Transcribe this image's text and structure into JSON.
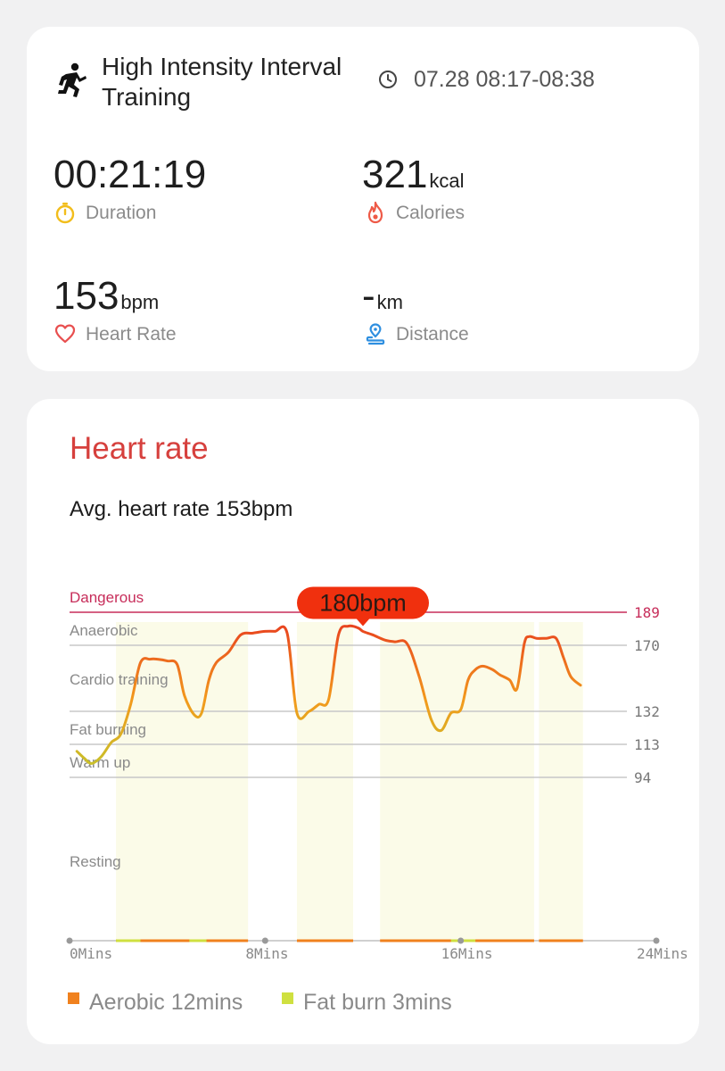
{
  "workout": {
    "title": "High Intensity Interval Training",
    "time_range": "07.28 08:17-08:38"
  },
  "metrics": {
    "duration": {
      "value": "00:21:19",
      "label": "Duration",
      "icon": "stopwatch-icon",
      "color": "#f2bd1b"
    },
    "calories": {
      "value": "321",
      "unit": "kcal",
      "label": "Calories",
      "icon": "flame-icon",
      "color": "#ee5a47"
    },
    "heart_rate": {
      "value": "153",
      "unit": "bpm",
      "label": "Heart Rate",
      "icon": "heart-icon",
      "color": "#e84f4f"
    },
    "distance": {
      "value": "-",
      "unit": "km",
      "label": "Distance",
      "icon": "route-pin-icon",
      "color": "#2f8fe0"
    }
  },
  "heart_rate_card": {
    "title": "Heart rate",
    "avg_text": "Avg. heart rate 153bpm",
    "peak_label": "180bpm"
  },
  "chart_data": {
    "type": "line",
    "xlabel": "",
    "ylabel": "",
    "x_ticks": [
      "0Mins",
      "8Mins",
      "16Mins",
      "24Mins"
    ],
    "xlim": [
      0,
      24
    ],
    "zones": [
      {
        "name": "Dangerous",
        "threshold": 189,
        "color": "#c72d5a"
      },
      {
        "name": "Anaerobic",
        "threshold": 170,
        "color": "#c8c8c8"
      },
      {
        "name": "Cardio training",
        "threshold": 132,
        "color": "#c8c8c8"
      },
      {
        "name": "Fat burning",
        "threshold": 113,
        "color": "#c8c8c8"
      },
      {
        "name": "Warm up",
        "threshold": 94,
        "color": "#c8c8c8"
      },
      {
        "name": "Resting",
        "threshold": null,
        "color": "#c8c8c8"
      }
    ],
    "peak": {
      "x": 12.0,
      "y": 180
    },
    "series": [
      {
        "x": [
          0.3,
          0.6,
          0.9,
          1.3,
          1.7,
          2.1,
          2.5,
          2.9,
          3.3,
          3.6,
          4.0,
          4.4,
          4.7,
          5.1,
          5.4,
          5.7,
          6.0,
          6.5,
          7.0,
          7.5,
          8.0,
          8.4,
          8.9,
          9.3,
          9.8,
          10.2,
          10.6,
          11.0,
          11.4,
          11.8,
          12.0,
          12.4,
          12.9,
          13.3,
          13.8,
          14.3,
          14.8,
          15.2,
          15.6,
          16.0,
          16.3,
          16.6,
          16.9,
          17.3,
          17.6,
          18.0,
          18.3,
          18.6,
          18.8,
          19.1,
          19.5,
          19.9,
          20.2,
          20.5,
          20.9
        ],
        "y": [
          109,
          105,
          102,
          106,
          114,
          119,
          136,
          160,
          162,
          162,
          161,
          159,
          141,
          130,
          131,
          150,
          160,
          166,
          176,
          177,
          178,
          178,
          177,
          131,
          132,
          136,
          139,
          176,
          181,
          180,
          178,
          176,
          173,
          172,
          171,
          152,
          127,
          121,
          131,
          133,
          150,
          156,
          158,
          156,
          153,
          150,
          145,
          171,
          175,
          174,
          174,
          174,
          163,
          152,
          147
        ]
      }
    ],
    "colors": {
      "line_low": "#c9c02a",
      "line_mid": "#f29a1c",
      "line_high": "#e8401f",
      "zone_fill": "#fbfbe8"
    },
    "legend": [
      {
        "label": "Aerobic 12mins",
        "color": "#f0811e"
      },
      {
        "label": "Fat burn 3mins",
        "color": "#cfe040"
      }
    ],
    "highlighted_ranges": [
      [
        1.9,
        7.3
      ],
      [
        9.3,
        11.6
      ],
      [
        12.7,
        19.0
      ],
      [
        19.2,
        21.0
      ]
    ]
  }
}
